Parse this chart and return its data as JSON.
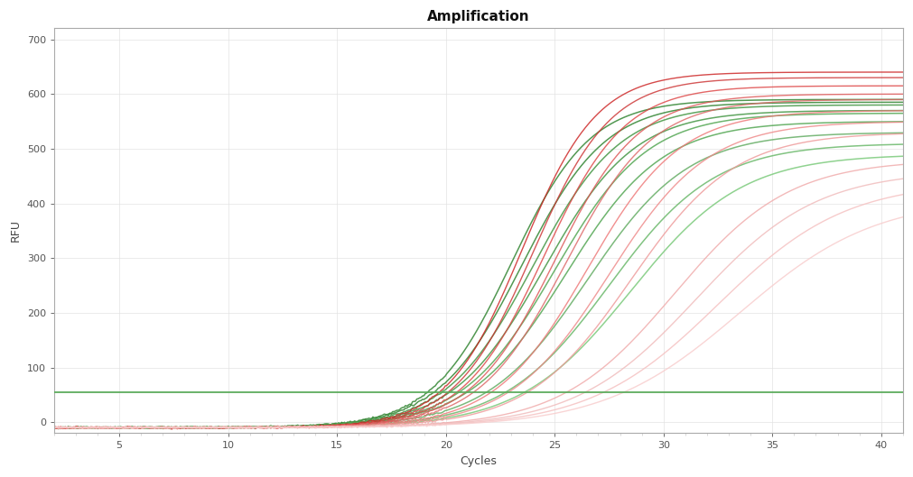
{
  "title": "Amplification",
  "xlabel": "Cycles",
  "ylabel": "RFU",
  "xlim": [
    2,
    41
  ],
  "ylim": [
    -20,
    720
  ],
  "yticks": [
    0,
    100,
    200,
    300,
    400,
    500,
    600,
    700
  ],
  "xticks": [
    5,
    10,
    15,
    20,
    25,
    30,
    35,
    40
  ],
  "threshold_y": 55,
  "threshold_color": "#5aaa5a",
  "background_color": "#ffffff",
  "grid_color": "#e0e0e0",
  "green_curves": [
    {
      "L": 600,
      "k": 0.55,
      "x0": 23.0,
      "color": "#3a8a3a"
    },
    {
      "L": 595,
      "k": 0.52,
      "x0": 23.5,
      "color": "#3a8a3a"
    },
    {
      "L": 590,
      "k": 0.5,
      "x0": 24.0,
      "color": "#4a9a4a"
    },
    {
      "L": 580,
      "k": 0.48,
      "x0": 24.5,
      "color": "#4a9a4a"
    },
    {
      "L": 575,
      "k": 0.47,
      "x0": 25.0,
      "color": "#5aaa5a"
    },
    {
      "L": 560,
      "k": 0.45,
      "x0": 25.5,
      "color": "#5aaa5a"
    },
    {
      "L": 540,
      "k": 0.43,
      "x0": 26.5,
      "color": "#6ab06a"
    },
    {
      "L": 520,
      "k": 0.41,
      "x0": 27.5,
      "color": "#70bb70"
    },
    {
      "L": 500,
      "k": 0.39,
      "x0": 28.5,
      "color": "#80cc80"
    }
  ],
  "red_curves": [
    {
      "L": 650,
      "k": 0.58,
      "x0": 23.5,
      "color": "#cc2222"
    },
    {
      "L": 640,
      "k": 0.56,
      "x0": 24.0,
      "color": "#cc3333"
    },
    {
      "L": 625,
      "k": 0.54,
      "x0": 24.5,
      "color": "#dd4444"
    },
    {
      "L": 610,
      "k": 0.52,
      "x0": 25.0,
      "color": "#dd5555"
    },
    {
      "L": 600,
      "k": 0.5,
      "x0": 25.5,
      "color": "#dd6666"
    },
    {
      "L": 580,
      "k": 0.47,
      "x0": 26.5,
      "color": "#ee7777"
    },
    {
      "L": 560,
      "k": 0.44,
      "x0": 27.5,
      "color": "#ee8888"
    },
    {
      "L": 540,
      "k": 0.42,
      "x0": 28.5,
      "color": "#ee9999"
    },
    {
      "L": 490,
      "k": 0.38,
      "x0": 30.5,
      "color": "#f0aaaa"
    },
    {
      "L": 470,
      "k": 0.36,
      "x0": 31.5,
      "color": "#f0bbbb"
    },
    {
      "L": 450,
      "k": 0.34,
      "x0": 32.5,
      "color": "#f5c0c0"
    },
    {
      "L": 420,
      "k": 0.32,
      "x0": 33.5,
      "color": "#f8cccc"
    }
  ]
}
